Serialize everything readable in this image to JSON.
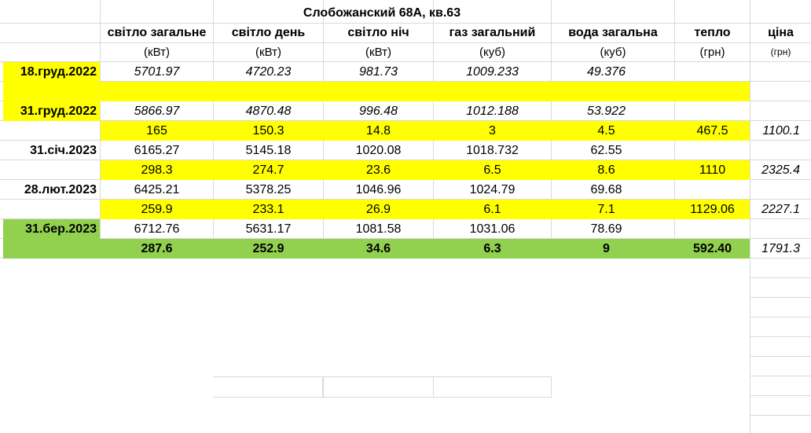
{
  "sheet": {
    "title": "Слобожанский 68А, кв.63",
    "columns": [
      {
        "label": "світло загальне",
        "unit": "(кВт)"
      },
      {
        "label": "світло день",
        "unit": "(кВт)"
      },
      {
        "label": "світло ніч",
        "unit": "(кВт)"
      },
      {
        "label": "газ загальний",
        "unit": "(куб)"
      },
      {
        "label": "вода загальна",
        "unit": "(куб)"
      },
      {
        "label": "тепло",
        "unit": "(грн)"
      },
      {
        "label": "ціна",
        "unit": "(грн)"
      }
    ],
    "rows": [
      {
        "date": "18.груд.2022",
        "values": [
          "5701.97",
          "4720.23",
          "981.73",
          "1009.233",
          "49.376"
        ]
      },
      {
        "date": "31.груд.2022",
        "values": [
          "5866.97",
          "4870.48",
          "996.48",
          "1012.188",
          "53.922"
        ]
      },
      {
        "values": [
          "165",
          "150.3",
          "14.8",
          "3",
          "4.5",
          "467.5"
        ],
        "price": "1100.1"
      },
      {
        "date": "31.січ.2023",
        "values": [
          "6165.27",
          "5145.18",
          "1020.08",
          "1018.732",
          "62.55"
        ]
      },
      {
        "values": [
          "298.3",
          "274.7",
          "23.6",
          "6.5",
          "8.6",
          "1110"
        ],
        "price": "2325.4"
      },
      {
        "date": "28.лют.2023",
        "values": [
          "6425.21",
          "5378.25",
          "1046.96",
          "1024.79",
          "69.68"
        ]
      },
      {
        "values": [
          "259.9",
          "233.1",
          "26.9",
          "6.1",
          "7.1",
          "1129.06"
        ],
        "price": "2227.1"
      },
      {
        "date": "31.бер.2023",
        "values": [
          "6712.76",
          "5631.17",
          "1081.58",
          "1031.06",
          "78.69"
        ]
      },
      {
        "values": [
          "287.6",
          "252.9",
          "34.6",
          "6.3",
          "9",
          "592.40"
        ],
        "price": "1791.3"
      }
    ],
    "colors": {
      "yellow": "#ffff00",
      "green": "#92d050",
      "grid": "#d9d9d9"
    }
  }
}
